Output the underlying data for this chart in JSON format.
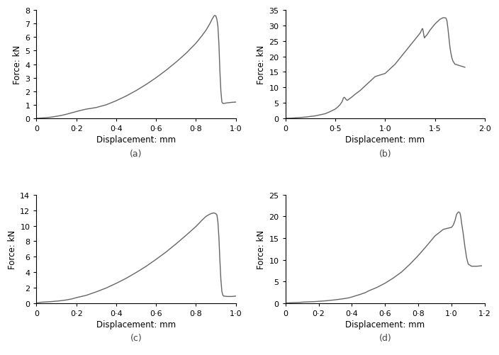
{
  "subplots": [
    {
      "label": "(a)",
      "xlabel": "Displacement: mm",
      "ylabel": "Force: kN",
      "xlim": [
        0,
        1.0
      ],
      "ylim": [
        0,
        8
      ],
      "xtick_vals": [
        0,
        0.2,
        0.4,
        0.6,
        0.8,
        1.0
      ],
      "xtick_labels": [
        "0",
        "0·2",
        "0·4",
        "0·6",
        "0·8",
        "1·0"
      ],
      "yticks": [
        0,
        1,
        2,
        3,
        4,
        5,
        6,
        7,
        8
      ],
      "curve": [
        [
          0,
          0
        ],
        [
          0.02,
          0.02
        ],
        [
          0.05,
          0.05
        ],
        [
          0.08,
          0.1
        ],
        [
          0.12,
          0.2
        ],
        [
          0.15,
          0.3
        ],
        [
          0.18,
          0.42
        ],
        [
          0.2,
          0.5
        ],
        [
          0.22,
          0.58
        ],
        [
          0.25,
          0.68
        ],
        [
          0.28,
          0.75
        ],
        [
          0.3,
          0.8
        ],
        [
          0.35,
          1.0
        ],
        [
          0.4,
          1.3
        ],
        [
          0.45,
          1.65
        ],
        [
          0.5,
          2.05
        ],
        [
          0.55,
          2.5
        ],
        [
          0.6,
          3.0
        ],
        [
          0.65,
          3.55
        ],
        [
          0.7,
          4.15
        ],
        [
          0.75,
          4.8
        ],
        [
          0.8,
          5.55
        ],
        [
          0.83,
          6.1
        ],
        [
          0.85,
          6.5
        ],
        [
          0.87,
          7.0
        ],
        [
          0.88,
          7.3
        ],
        [
          0.89,
          7.55
        ],
        [
          0.895,
          7.6
        ],
        [
          0.9,
          7.55
        ],
        [
          0.905,
          7.3
        ],
        [
          0.91,
          6.8
        ],
        [
          0.915,
          5.5
        ],
        [
          0.92,
          3.5
        ],
        [
          0.925,
          2.0
        ],
        [
          0.93,
          1.2
        ],
        [
          0.935,
          1.1
        ],
        [
          0.94,
          1.1
        ],
        [
          0.96,
          1.15
        ],
        [
          0.98,
          1.18
        ],
        [
          1.0,
          1.2
        ]
      ]
    },
    {
      "label": "(b)",
      "xlabel": "Displacement: mm",
      "ylabel": "Force: kN",
      "xlim": [
        0,
        2.0
      ],
      "ylim": [
        0,
        35
      ],
      "xtick_vals": [
        0,
        0.5,
        1.0,
        1.5,
        2.0
      ],
      "xtick_labels": [
        "0",
        "0·5",
        "1·0",
        "1·5",
        "2·0"
      ],
      "yticks": [
        0,
        5,
        10,
        15,
        20,
        25,
        30,
        35
      ],
      "curve": [
        [
          0,
          0
        ],
        [
          0.05,
          0.05
        ],
        [
          0.1,
          0.15
        ],
        [
          0.2,
          0.4
        ],
        [
          0.3,
          0.8
        ],
        [
          0.4,
          1.5
        ],
        [
          0.45,
          2.2
        ],
        [
          0.5,
          3.0
        ],
        [
          0.53,
          3.8
        ],
        [
          0.55,
          4.5
        ],
        [
          0.57,
          5.5
        ],
        [
          0.58,
          6.5
        ],
        [
          0.59,
          6.8
        ],
        [
          0.6,
          6.5
        ],
        [
          0.61,
          6.0
        ],
        [
          0.62,
          5.8
        ],
        [
          0.63,
          6.0
        ],
        [
          0.65,
          6.5
        ],
        [
          0.67,
          7.0
        ],
        [
          0.7,
          7.8
        ],
        [
          0.75,
          9.0
        ],
        [
          0.8,
          10.5
        ],
        [
          0.85,
          12.0
        ],
        [
          0.9,
          13.5
        ],
        [
          0.95,
          14.0
        ],
        [
          1.0,
          14.5
        ],
        [
          1.05,
          16.0
        ],
        [
          1.1,
          17.5
        ],
        [
          1.15,
          19.5
        ],
        [
          1.2,
          21.5
        ],
        [
          1.25,
          23.5
        ],
        [
          1.3,
          25.5
        ],
        [
          1.35,
          27.5
        ],
        [
          1.37,
          28.8
        ],
        [
          1.375,
          29.0
        ],
        [
          1.38,
          28.5
        ],
        [
          1.385,
          27.5
        ],
        [
          1.39,
          26.5
        ],
        [
          1.395,
          26.0
        ],
        [
          1.4,
          26.3
        ],
        [
          1.42,
          27.0
        ],
        [
          1.45,
          28.5
        ],
        [
          1.5,
          30.5
        ],
        [
          1.55,
          32.0
        ],
        [
          1.58,
          32.5
        ],
        [
          1.6,
          32.5
        ],
        [
          1.61,
          32.4
        ],
        [
          1.62,
          31.5
        ],
        [
          1.63,
          29.0
        ],
        [
          1.64,
          26.0
        ],
        [
          1.65,
          23.0
        ],
        [
          1.66,
          21.0
        ],
        [
          1.67,
          19.5
        ],
        [
          1.68,
          18.5
        ],
        [
          1.7,
          17.5
        ],
        [
          1.75,
          17.0
        ],
        [
          1.8,
          16.5
        ]
      ]
    },
    {
      "label": "(c)",
      "xlabel": "Displacement: mm",
      "ylabel": "Force: kN",
      "xlim": [
        0,
        1.0
      ],
      "ylim": [
        0,
        14
      ],
      "xtick_vals": [
        0,
        0.2,
        0.4,
        0.6,
        0.8,
        1.0
      ],
      "xtick_labels": [
        "0",
        "0·2",
        "0·4",
        "0·6",
        "0·8",
        "1·0"
      ],
      "yticks": [
        0,
        2,
        4,
        6,
        8,
        10,
        12,
        14
      ],
      "curve": [
        [
          0,
          0
        ],
        [
          0.02,
          0.1
        ],
        [
          0.05,
          0.15
        ],
        [
          0.08,
          0.2
        ],
        [
          0.1,
          0.25
        ],
        [
          0.12,
          0.3
        ],
        [
          0.15,
          0.4
        ],
        [
          0.18,
          0.55
        ],
        [
          0.2,
          0.7
        ],
        [
          0.25,
          1.0
        ],
        [
          0.3,
          1.45
        ],
        [
          0.35,
          1.95
        ],
        [
          0.4,
          2.55
        ],
        [
          0.45,
          3.2
        ],
        [
          0.5,
          3.95
        ],
        [
          0.55,
          4.75
        ],
        [
          0.6,
          5.65
        ],
        [
          0.65,
          6.6
        ],
        [
          0.7,
          7.65
        ],
        [
          0.75,
          8.75
        ],
        [
          0.8,
          9.9
        ],
        [
          0.83,
          10.7
        ],
        [
          0.85,
          11.2
        ],
        [
          0.87,
          11.5
        ],
        [
          0.88,
          11.6
        ],
        [
          0.89,
          11.65
        ],
        [
          0.895,
          11.6
        ],
        [
          0.9,
          11.55
        ],
        [
          0.905,
          11.4
        ],
        [
          0.91,
          10.5
        ],
        [
          0.915,
          8.5
        ],
        [
          0.92,
          5.5
        ],
        [
          0.925,
          3.0
        ],
        [
          0.93,
          1.5
        ],
        [
          0.935,
          1.0
        ],
        [
          0.94,
          0.9
        ],
        [
          0.96,
          0.85
        ],
        [
          0.98,
          0.85
        ],
        [
          1.0,
          0.9
        ]
      ]
    },
    {
      "label": "(d)",
      "xlabel": "Displacement: mm",
      "ylabel": "Force: kN",
      "xlim": [
        0,
        1.2
      ],
      "ylim": [
        0,
        25
      ],
      "xtick_vals": [
        0,
        0.2,
        0.4,
        0.6,
        0.8,
        1.0,
        1.2
      ],
      "xtick_labels": [
        "0",
        "0·2",
        "0·4",
        "0·6",
        "0·8",
        "1·0",
        "1·2"
      ],
      "yticks": [
        0,
        5,
        10,
        15,
        20,
        25
      ],
      "curve": [
        [
          0,
          0
        ],
        [
          0.02,
          0.05
        ],
        [
          0.05,
          0.1
        ],
        [
          0.08,
          0.15
        ],
        [
          0.1,
          0.2
        ],
        [
          0.12,
          0.25
        ],
        [
          0.15,
          0.3
        ],
        [
          0.18,
          0.35
        ],
        [
          0.2,
          0.4
        ],
        [
          0.25,
          0.55
        ],
        [
          0.3,
          0.75
        ],
        [
          0.35,
          1.0
        ],
        [
          0.38,
          1.2
        ],
        [
          0.4,
          1.4
        ],
        [
          0.42,
          1.65
        ],
        [
          0.45,
          2.0
        ],
        [
          0.48,
          2.4
        ],
        [
          0.5,
          2.8
        ],
        [
          0.55,
          3.6
        ],
        [
          0.6,
          4.6
        ],
        [
          0.65,
          5.8
        ],
        [
          0.7,
          7.2
        ],
        [
          0.75,
          9.0
        ],
        [
          0.8,
          11.0
        ],
        [
          0.85,
          13.2
        ],
        [
          0.9,
          15.5
        ],
        [
          0.95,
          17.0
        ],
        [
          1.0,
          17.5
        ],
        [
          1.01,
          18.0
        ],
        [
          1.02,
          19.0
        ],
        [
          1.03,
          20.5
        ],
        [
          1.04,
          21.0
        ],
        [
          1.045,
          21.0
        ],
        [
          1.05,
          20.8
        ],
        [
          1.055,
          20.0
        ],
        [
          1.06,
          18.5
        ],
        [
          1.07,
          16.0
        ],
        [
          1.08,
          13.0
        ],
        [
          1.09,
          10.5
        ],
        [
          1.1,
          9.0
        ],
        [
          1.12,
          8.5
        ],
        [
          1.15,
          8.5
        ],
        [
          1.18,
          8.6
        ]
      ]
    }
  ],
  "line_color": "#666666",
  "line_width": 1.0,
  "tick_label_size": 8,
  "axis_label_size": 8.5,
  "sublabel_size": 9,
  "background_color": "#ffffff"
}
